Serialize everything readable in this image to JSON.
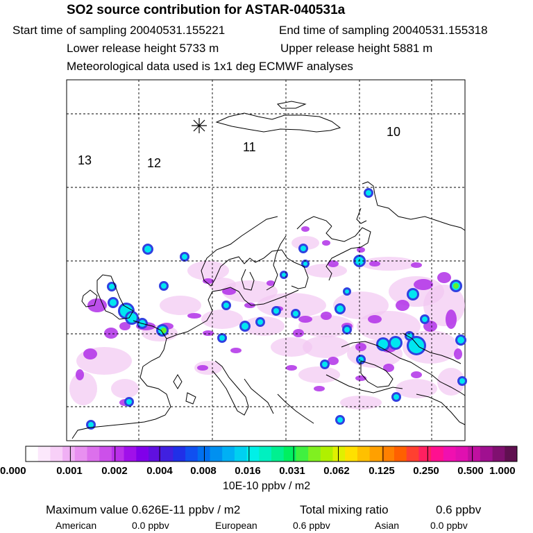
{
  "header": {
    "title": "SO2 source contribution for ASTAR-040531a",
    "start_label": "Start time of sampling 20040531.155221",
    "end_label": "End time of sampling 20040531.155318",
    "lower_label": "Lower release height 5733 m",
    "upper_label": "Upper release height 5881 m",
    "met_label": "Meteorological data used is 1x1 deg ECMWF analyses"
  },
  "map": {
    "sector_labels": [
      "13",
      "12",
      "11",
      "10"
    ],
    "marker": "sampling-location-star"
  },
  "colorbar": {
    "labels": [
      "0.000",
      "0.001",
      "0.002",
      "0.004",
      "0.008",
      "0.016",
      "0.031",
      "0.062",
      "0.125",
      "0.250",
      "0.500",
      "1.000"
    ],
    "unit": "10E-10 ppbv / m2",
    "colors": [
      "#ffffff",
      "#fce8fc",
      "#f8d0f8",
      "#f0b0f4",
      "#e890f0",
      "#dc70ec",
      "#cc50ea",
      "#bb30ea",
      "#a010ea",
      "#8000ea",
      "#6010e0",
      "#4020e0",
      "#2030e8",
      "#1050f0",
      "#0070f0",
      "#0090f0",
      "#00b0f4",
      "#00d0f0",
      "#00f0e8",
      "#00f0c0",
      "#00f090",
      "#00f060",
      "#40f040",
      "#80f020",
      "#b0f000",
      "#e0f000",
      "#ffe000",
      "#ffc000",
      "#ffa000",
      "#ff8000",
      "#ff6000",
      "#ff4030",
      "#ff2060",
      "#ff1090",
      "#f010b0",
      "#e010b0",
      "#c010a0",
      "#a01090",
      "#801070",
      "#601050"
    ]
  },
  "footer": {
    "max_label": "Maximum value  0.626E-11 ppbv / m2",
    "total_label": "Total mixing ratio",
    "total_value": "0.6 ppbv",
    "american_label": "American",
    "american_value": "0.0 ppbv",
    "european_label": "European",
    "european_value": "0.6 ppbv",
    "asian_label": "Asian",
    "asian_value": "0.0 ppbv"
  }
}
